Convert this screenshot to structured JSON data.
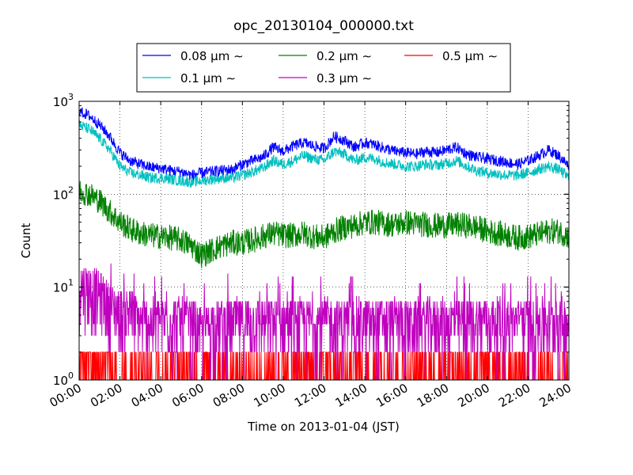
{
  "chart_data": {
    "type": "line",
    "title": "opc_20130104_000000.txt",
    "xlabel": "Time on 2013-01-04 (JST)",
    "ylabel": "Count",
    "y_scale": "log",
    "ylim": [
      1,
      1000
    ],
    "xlim": [
      "00:00",
      "24:00"
    ],
    "x_ticks": [
      "00:00",
      "02:00",
      "04:00",
      "06:00",
      "08:00",
      "10:00",
      "12:00",
      "14:00",
      "16:00",
      "18:00",
      "20:00",
      "22:00",
      "24:00"
    ],
    "y_ticks": [
      {
        "value": 1,
        "base": "10",
        "exp": "0"
      },
      {
        "value": 10,
        "base": "10",
        "exp": "1"
      },
      {
        "value": 100,
        "base": "10",
        "exp": "2"
      },
      {
        "value": 1000,
        "base": "10",
        "exp": "3"
      }
    ],
    "grid": true,
    "legend_position": "top-center",
    "legend": [
      {
        "label": "0.08 μm ∼",
        "color": "#0000ff"
      },
      {
        "label": "0.1 μm ∼",
        "color": "#00bfbf"
      },
      {
        "label": "0.2 μm ∼",
        "color": "#008000"
      },
      {
        "label": "0.3 μm ∼",
        "color": "#bf00bf"
      },
      {
        "label": "0.5 μm ∼",
        "color": "#ff0000"
      }
    ],
    "x_hours": [
      0,
      0.5,
      1,
      1.5,
      2,
      2.5,
      3,
      3.5,
      4,
      4.5,
      5,
      5.5,
      6,
      6.5,
      7,
      7.5,
      8,
      8.5,
      9,
      9.5,
      10,
      10.5,
      11,
      11.5,
      12,
      12.5,
      13,
      13.5,
      14,
      14.5,
      15,
      15.5,
      16,
      16.5,
      17,
      17.5,
      18,
      18.5,
      19,
      19.5,
      20,
      20.5,
      21,
      21.5,
      22,
      22.5,
      23,
      23.5,
      24
    ],
    "series": [
      {
        "name": "0.08 μm ∼",
        "color": "#0000ff",
        "values": [
          780,
          700,
          560,
          420,
          280,
          230,
          210,
          195,
          190,
          180,
          175,
          160,
          170,
          175,
          180,
          185,
          210,
          230,
          250,
          320,
          290,
          330,
          360,
          330,
          310,
          420,
          380,
          320,
          360,
          340,
          310,
          290,
          280,
          270,
          290,
          280,
          300,
          320,
          270,
          250,
          240,
          230,
          220,
          210,
          230,
          260,
          300,
          260,
          200
        ]
      },
      {
        "name": "0.1 μm ∼",
        "color": "#00bfbf",
        "values": [
          560,
          500,
          400,
          300,
          200,
          170,
          160,
          150,
          150,
          145,
          140,
          135,
          140,
          145,
          150,
          150,
          160,
          175,
          190,
          230,
          210,
          230,
          260,
          240,
          230,
          290,
          270,
          230,
          250,
          240,
          220,
          210,
          200,
          200,
          210,
          205,
          215,
          230,
          200,
          180,
          170,
          165,
          160,
          160,
          170,
          185,
          200,
          185,
          150
        ]
      },
      {
        "name": "0.2 μm ∼",
        "color": "#008000",
        "values": [
          110,
          100,
          85,
          65,
          50,
          42,
          38,
          36,
          35,
          34,
          32,
          28,
          22,
          25,
          28,
          30,
          30,
          32,
          35,
          38,
          36,
          36,
          38,
          35,
          34,
          40,
          44,
          46,
          50,
          50,
          48,
          47,
          50,
          48,
          47,
          46,
          46,
          47,
          46,
          44,
          40,
          38,
          36,
          34,
          35,
          37,
          40,
          40,
          35
        ]
      },
      {
        "name": "0.3 μm ∼",
        "color": "#bf00bf",
        "values": [
          10,
          9,
          8,
          6,
          5,
          5,
          4,
          4,
          4,
          4,
          4,
          4,
          3,
          4,
          4,
          4,
          4,
          4,
          4,
          4,
          4,
          4,
          4,
          4,
          4,
          4,
          4,
          4,
          4,
          4,
          4,
          4,
          4,
          4,
          4,
          4,
          4,
          4,
          4,
          4,
          4,
          4,
          4,
          4,
          4,
          4,
          4,
          4,
          4
        ]
      },
      {
        "name": "0.5 μm ∼",
        "color": "#ff0000",
        "values": [
          2,
          2,
          2,
          1,
          1,
          1,
          1,
          1,
          1,
          1,
          1,
          1,
          1,
          1,
          1,
          1,
          1,
          1,
          1,
          1,
          1,
          1,
          1,
          1,
          1,
          1,
          1,
          1,
          1,
          1,
          1,
          1,
          1,
          1,
          1,
          1,
          1,
          1,
          1,
          1,
          1,
          1,
          1,
          1,
          1,
          1,
          1,
          1,
          1
        ]
      }
    ]
  }
}
